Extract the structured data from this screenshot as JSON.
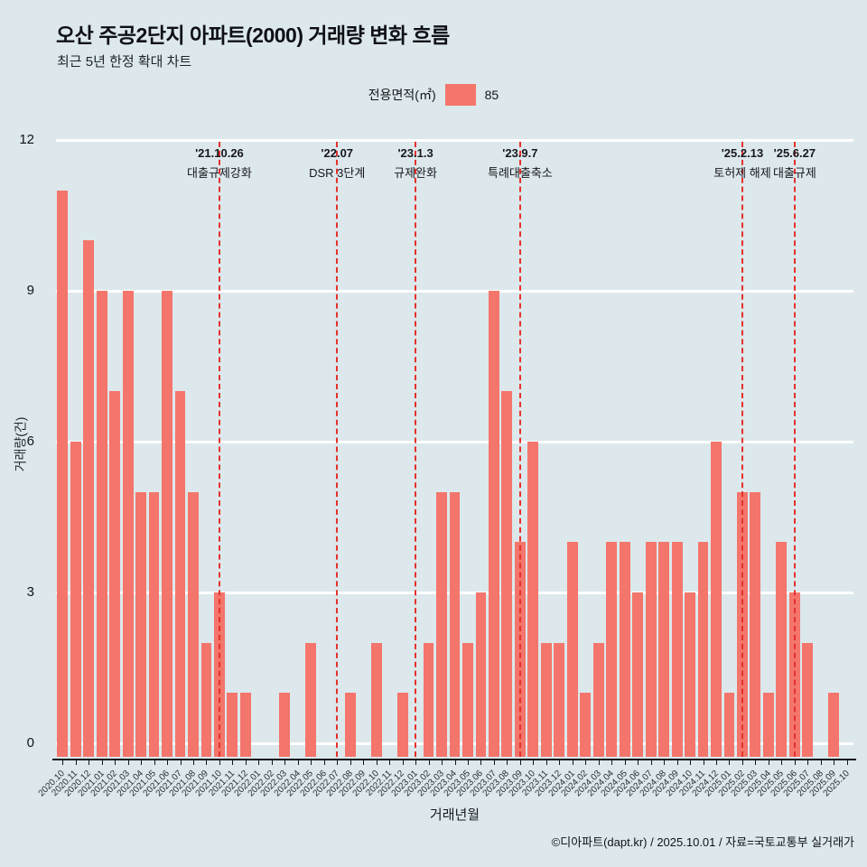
{
  "header": {
    "title": "오산 주공2단지 아파트(2000) 거래량 변화 흐름",
    "subtitle": "최근 5년 한정 확대 차트"
  },
  "legend": {
    "title": "전용면적(㎡)",
    "value": "85",
    "swatch_color": "#f4756b"
  },
  "chart_data": {
    "type": "bar",
    "title": "오산 주공2단지 아파트(2000) 거래량 변화 흐름",
    "xlabel": "거래년월",
    "ylabel": "거래량(건)",
    "ylim": [
      0,
      12
    ],
    "yticks": [
      0,
      3,
      6,
      9,
      12
    ],
    "grid": true,
    "grid_color": "#ffffff",
    "bar_color": "#f4756b",
    "event_line_color": "#e5312b",
    "categories": [
      "2020.10",
      "2020.11",
      "2020.12",
      "2021.01",
      "2021.02",
      "2021.03",
      "2021.04",
      "2021.05",
      "2021.06",
      "2021.07",
      "2021.08",
      "2021.09",
      "2021.10",
      "2021.11",
      "2021.12",
      "2022.01",
      "2022.02",
      "2022.03",
      "2022.04",
      "2022.05",
      "2022.06",
      "2022.07",
      "2022.08",
      "2022.09",
      "2022.10",
      "2022.11",
      "2022.12",
      "2023.01",
      "2023.02",
      "2023.03",
      "2023.04",
      "2023.05",
      "2023.06",
      "2023.07",
      "2023.08",
      "2023.09",
      "2023.10",
      "2023.11",
      "2023.12",
      "2024.01",
      "2024.02",
      "2024.03",
      "2024.04",
      "2024.05",
      "2024.06",
      "2024.07",
      "2024.08",
      "2024.09",
      "2024.10",
      "2024.11",
      "2024.12",
      "2025.01",
      "2025.02",
      "2025.03",
      "2025.04",
      "2025.05",
      "2025.06",
      "2025.07",
      "2025.08",
      "2025.09",
      "2025.10"
    ],
    "values": [
      11,
      6,
      10,
      9,
      7,
      9,
      5,
      5,
      9,
      7,
      5,
      2,
      3,
      1,
      1,
      0,
      0,
      1,
      0,
      2,
      0,
      0,
      1,
      0,
      2,
      0,
      1,
      0,
      2,
      5,
      5,
      2,
      3,
      9,
      7,
      4,
      6,
      2,
      2,
      4,
      1,
      2,
      4,
      4,
      3,
      4,
      4,
      4,
      3,
      4,
      6,
      1,
      5,
      5,
      1,
      4,
      3,
      2,
      0,
      1,
      0
    ],
    "events": [
      {
        "date": "'21.10.26",
        "label": "대출규제강화",
        "month": "2021.10"
      },
      {
        "date": "'22.07",
        "label": "DSR 3단계",
        "month": "2022.07"
      },
      {
        "date": "'23.1.3",
        "label": "규제완화",
        "month": "2023.01"
      },
      {
        "date": "'23.9.7",
        "label": "특례대출축소",
        "month": "2023.09"
      },
      {
        "date": "'25.2.13",
        "label": "토허제 해제",
        "month": "2025.02"
      },
      {
        "date": "'25.6.27",
        "label": "대출규제",
        "month": "2025.06"
      }
    ]
  },
  "footer": {
    "credit": "©디아파트(dapt.kr) / 2025.10.01 / 자료=국토교통부 실거래가"
  }
}
